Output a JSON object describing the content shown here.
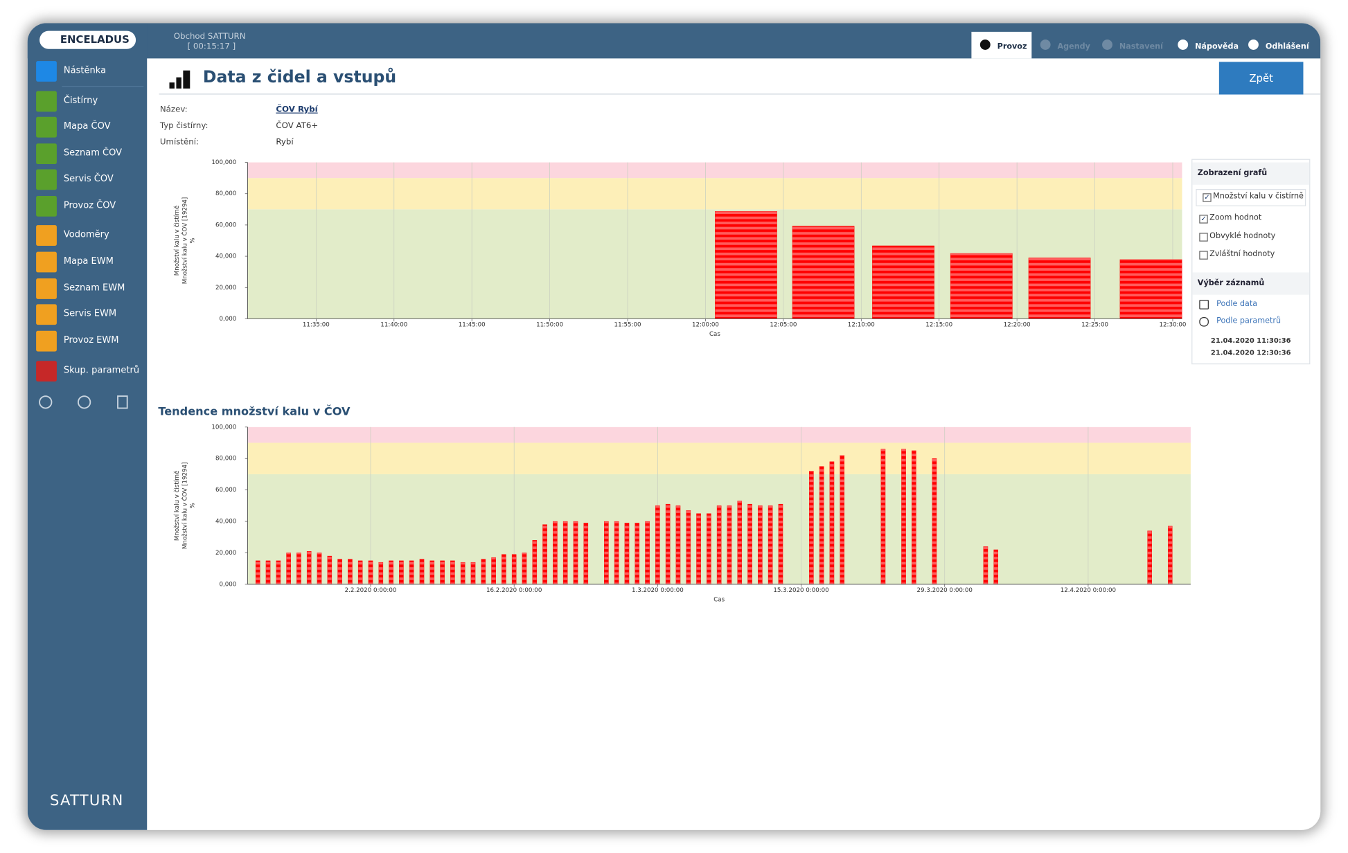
{
  "header": {
    "logo": "ENCELADUS",
    "store": "Obchod SATTURN",
    "timer": "[ 00:15:17 ]",
    "nav": [
      {
        "label": "Provoz",
        "active": true,
        "disabled": false
      },
      {
        "label": "Agendy",
        "active": false,
        "disabled": true
      },
      {
        "label": "Nastavení",
        "active": false,
        "disabled": true
      },
      {
        "label": "Nápověda",
        "active": false,
        "disabled": false
      },
      {
        "label": "Odhlášení",
        "active": false,
        "disabled": false
      }
    ]
  },
  "sidebar": {
    "items": [
      "Nástěnka",
      "Čistírny",
      "Mapa ČOV",
      "Seznam ČOV",
      "Servis ČOV",
      "Provoz ČOV",
      "Vodoměry",
      "Mapa EWM",
      "Seznam EWM",
      "Servis EWM",
      "Provoz EWM",
      "Skup. parametrů"
    ],
    "footer": "SATTURN"
  },
  "page": {
    "title": "Data z čidel a vstupů",
    "back_button": "Zpět",
    "info": [
      [
        "Název:",
        "ČOV Rybí"
      ],
      [
        "Typ čistírny:",
        "ČOV AT6+"
      ],
      [
        "Umístění:",
        "Rybí"
      ]
    ]
  },
  "panel": {
    "display_title": "Zobrazení grafů",
    "select": {
      "label": "Množství kalu v čistírně",
      "checked": true
    },
    "options": [
      {
        "label": "Zoom hodnot",
        "checked": true
      },
      {
        "label": "Obvyklé hodnoty",
        "checked": false
      },
      {
        "label": "Zvláštní hodnoty",
        "checked": false
      }
    ],
    "records_title": "Výběr záznamů",
    "links": [
      "Podle data",
      "Podle parametrů"
    ],
    "range": [
      "21.04.2020 11:30:36",
      "21.04.2020 12:30:36"
    ]
  },
  "chart_data": [
    {
      "type": "bar",
      "xlabel": "Cas",
      "ylabel": [
        "Množství kalu v čistírně",
        "Množství kalu v ČOV [19294]",
        "%"
      ],
      "color": "#ff0000",
      "grid": true,
      "bands": [
        {
          "from": 0,
          "to": 70,
          "color": "#e2ecc9"
        },
        {
          "from": 70,
          "to": 90,
          "color": "#fdefb8"
        },
        {
          "from": 90,
          "to": 100,
          "color": "#fcd6de"
        }
      ],
      "x": [
        "12:02:36",
        "12:07:34",
        "12:12:42",
        "12:17:43",
        "12:22:44",
        "12:28:36"
      ],
      "values": [
        68.7,
        59.3,
        46.7,
        41.8,
        39,
        37.9
      ],
      "xlim": [
        "11:30:36",
        "12:30:36"
      ],
      "xticks": [
        "11:35:00",
        "11:40:00",
        "11:45:00",
        "11:50:00",
        "11:55:00",
        "12:00:00",
        "12:05:00",
        "12:10:00",
        "12:15:00",
        "12:20:00",
        "12:25:00",
        "12:30:00"
      ],
      "ylim": [
        0,
        100
      ],
      "yticks": [
        {
          "value": 0,
          "label": "0,000"
        },
        {
          "value": 20,
          "label": "20,000"
        },
        {
          "value": 40,
          "label": "40,000"
        },
        {
          "value": 60,
          "label": "60,000"
        },
        {
          "value": 80,
          "label": "80,000"
        },
        {
          "value": 100,
          "label": "100,000"
        }
      ]
    },
    {
      "type": "bar",
      "title": "Tendence množství kalu v ČOV",
      "xlabel": "Cas",
      "ylabel": [
        "Množství kalu v čistírně",
        "Množství kalu v ČOV [19294]",
        "%"
      ],
      "color": "#ff0000",
      "grid": true,
      "bands": [
        {
          "from": 0,
          "to": 70,
          "color": "#e2ecc9"
        },
        {
          "from": 70,
          "to": 90,
          "color": "#fdefb8"
        },
        {
          "from": 90,
          "to": 100,
          "color": "#fcd6de"
        }
      ],
      "x": [
        "2020-01-22",
        "2020-01-23",
        "2020-01-24",
        "2020-01-25",
        "2020-01-26",
        "2020-01-27",
        "2020-01-28",
        "2020-01-29",
        "2020-01-30",
        "2020-01-31",
        "2020-02-01",
        "2020-02-02",
        "2020-02-03",
        "2020-02-04",
        "2020-02-05",
        "2020-02-06",
        "2020-02-07",
        "2020-02-08",
        "2020-02-09",
        "2020-02-10",
        "2020-02-11",
        "2020-02-12",
        "2020-02-13",
        "2020-02-14",
        "2020-02-15",
        "2020-02-16",
        "2020-02-17",
        "2020-02-18",
        "2020-02-19",
        "2020-02-20",
        "2020-02-21",
        "2020-02-22",
        "2020-02-23",
        "2020-02-25",
        "2020-02-26",
        "2020-02-27",
        "2020-02-28",
        "2020-02-29",
        "2020-03-01",
        "2020-03-02",
        "2020-03-03",
        "2020-03-04",
        "2020-03-05",
        "2020-03-06",
        "2020-03-07",
        "2020-03-08",
        "2020-03-09",
        "2020-03-10",
        "2020-03-11",
        "2020-03-12",
        "2020-03-13",
        "2020-03-16",
        "2020-03-17",
        "2020-03-18",
        "2020-03-19",
        "2020-03-23",
        "2020-03-25",
        "2020-03-26",
        "2020-03-28",
        "2020-04-02",
        "2020-04-03",
        "2020-04-18",
        "2020-04-20"
      ],
      "values": [
        15,
        15,
        15,
        20,
        20,
        21,
        20,
        18,
        16,
        16,
        15,
        15,
        14,
        15,
        15,
        15,
        16,
        15,
        15,
        15,
        14,
        14,
        16,
        17,
        19,
        19,
        20,
        28,
        38,
        40,
        40,
        40,
        39,
        40,
        40,
        39,
        39,
        40,
        50,
        51,
        50,
        47,
        45,
        45,
        50,
        50,
        53,
        51,
        50,
        50,
        51,
        72,
        75,
        78,
        82,
        86,
        86,
        85,
        80,
        24,
        22,
        34,
        37
      ],
      "xlim": [
        "2020-01-21",
        "2020-04-22"
      ],
      "xticks": [
        {
          "value": "2020-02-02",
          "label": "2.2.2020 0:00:00"
        },
        {
          "value": "2020-02-16",
          "label": "16.2.2020 0:00:00"
        },
        {
          "value": "2020-03-01",
          "label": "1.3.2020 0:00:00"
        },
        {
          "value": "2020-03-15",
          "label": "15.3.2020 0:00:00"
        },
        {
          "value": "2020-03-29",
          "label": "29.3.2020 0:00:00"
        },
        {
          "value": "2020-04-12",
          "label": "12.4.2020 0:00:00"
        }
      ],
      "ylim": [
        0,
        100
      ],
      "yticks": [
        {
          "value": 0,
          "label": "0,000"
        },
        {
          "value": 20,
          "label": "20,000"
        },
        {
          "value": 40,
          "label": "40,000"
        },
        {
          "value": 60,
          "label": "60,000"
        },
        {
          "value": 80,
          "label": "80,000"
        },
        {
          "value": 100,
          "label": "100,000"
        }
      ]
    }
  ]
}
